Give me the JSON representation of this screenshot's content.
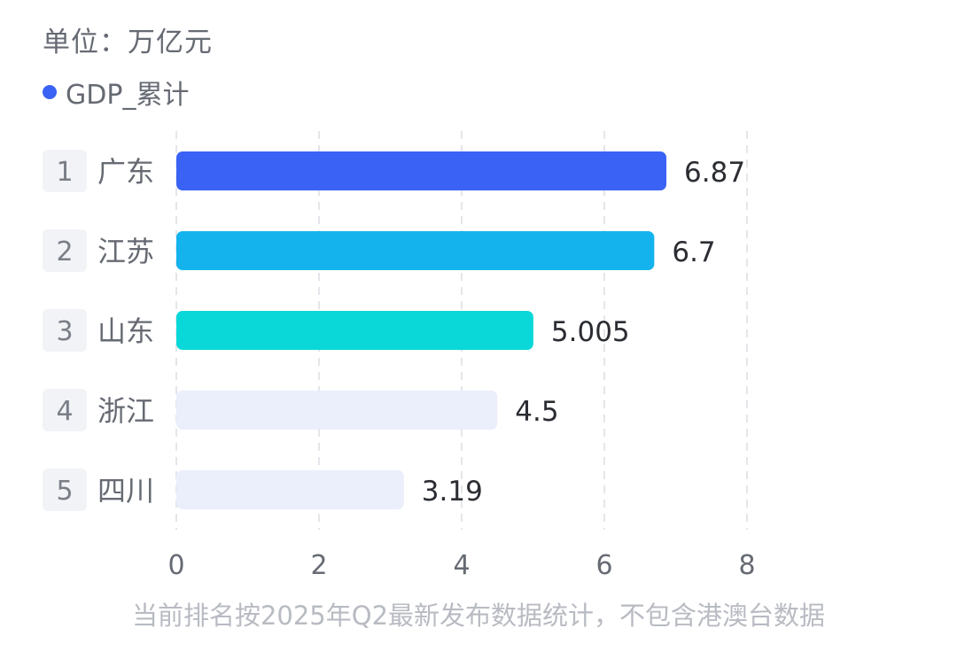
{
  "header": {
    "unit": "单位：万亿元"
  },
  "legend": {
    "label": "GDP_累计",
    "color": "#3a63f5"
  },
  "chart_data": {
    "type": "bar",
    "orientation": "horizontal",
    "categories": [
      "广东",
      "江苏",
      "山东",
      "浙江",
      "四川"
    ],
    "ranks": [
      "1",
      "2",
      "3",
      "4",
      "5"
    ],
    "series": [
      {
        "name": "GDP_累计",
        "values": [
          6.87,
          6.7,
          5.005,
          4.5,
          3.19
        ]
      }
    ],
    "value_labels": [
      "6.87",
      "6.7",
      "5.005",
      "4.5",
      "3.19"
    ],
    "bar_colors": [
      "#3a63f5",
      "#14b3ee",
      "#0ad8d8",
      "#ebeefb",
      "#ebeefb"
    ],
    "xlim": [
      0,
      8
    ],
    "x_ticks": [
      "0",
      "2",
      "4",
      "6",
      "8"
    ],
    "grid": true,
    "legend_position": "top-left"
  },
  "footnote": "当前排名按2025年Q2最新发布数据统计，不包含港澳台数据"
}
